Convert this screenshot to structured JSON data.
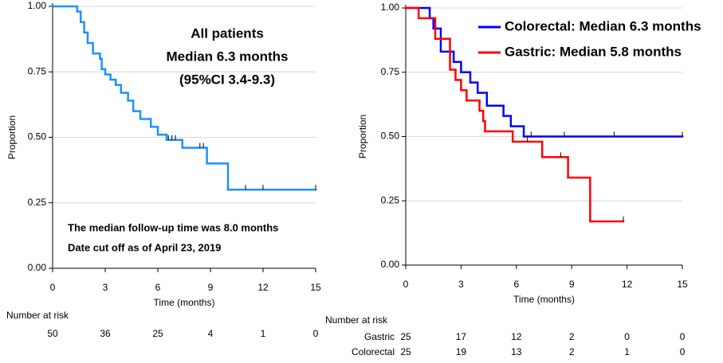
{
  "chart_data": [
    {
      "type": "step",
      "xlabel": "Time (months)",
      "ylabel": "Proportion",
      "annotations": [
        "All patients",
        "Median 6.3 months",
        "(95%CI 3.4-9.3)",
        "The median follow-up time was 8.0 months",
        "Date cut off as of April 23, 2019"
      ],
      "xlim": [
        0,
        15
      ],
      "ylim": [
        0,
        1
      ],
      "xticks": [
        0,
        3,
        6,
        9,
        12,
        15
      ],
      "yticks": [
        {
          "value": 0,
          "label": "0.00"
        },
        {
          "value": 0.25,
          "label": "0.25"
        },
        {
          "value": 0.5,
          "label": "0.50"
        },
        {
          "value": 0.75,
          "label": "0.75"
        },
        {
          "value": 1,
          "label": "1.00"
        }
      ],
      "grid": true,
      "series": [
        {
          "color": "#1e90ff",
          "x": [
            0,
            1.4,
            1.6,
            1.8,
            2.0,
            2.3,
            2.7,
            2.8,
            3.0,
            3.3,
            3.6,
            3.9,
            4.3,
            4.6,
            5.0,
            5.6,
            6.0,
            6.5,
            7.4,
            8.8,
            10.0,
            15.0
          ],
          "values": [
            1.0,
            0.98,
            0.94,
            0.9,
            0.86,
            0.82,
            0.8,
            0.76,
            0.74,
            0.72,
            0.7,
            0.67,
            0.64,
            0.6,
            0.57,
            0.54,
            0.51,
            0.49,
            0.46,
            0.4,
            0.3,
            0.3
          ],
          "censored": [
            6.6,
            6.8,
            7.0,
            8.4,
            8.6,
            11.0,
            12.0,
            15.0
          ]
        }
      ],
      "risk_table": {
        "title": "Number at risk",
        "rows": [
          {
            "values": [
              50,
              36,
              25,
              4,
              1,
              0
            ]
          }
        ]
      }
    },
    {
      "type": "step",
      "xlabel": "Time (months)",
      "ylabel": "Proportion",
      "xlim": [
        0,
        15
      ],
      "ylim": [
        0,
        1
      ],
      "xticks": [
        0,
        3,
        6,
        9,
        12,
        15
      ],
      "yticks": [
        {
          "value": 0,
          "label": "0.00"
        },
        {
          "value": 0.25,
          "label": "0.25"
        },
        {
          "value": 0.5,
          "label": "0.50"
        },
        {
          "value": 0.75,
          "label": "0.75"
        },
        {
          "value": 1,
          "label": "1.00"
        }
      ],
      "grid": true,
      "series": [
        {
          "name": "Colorectal: Median 6.3 months",
          "color": "#0000ff",
          "x": [
            0,
            1.3,
            1.5,
            1.9,
            2.6,
            3.0,
            3.5,
            3.9,
            4.4,
            5.3,
            5.7,
            6.4,
            15.0
          ],
          "values": [
            1.0,
            0.96,
            0.92,
            0.83,
            0.79,
            0.75,
            0.71,
            0.67,
            0.62,
            0.58,
            0.54,
            0.5,
            0.5
          ],
          "censored": [
            6.8,
            8.6,
            11.3,
            15.0
          ]
        },
        {
          "name": "Gastric: Median 5.8 months",
          "color": "#ff0000",
          "x": [
            0,
            0.7,
            1.6,
            2.4,
            2.7,
            3.0,
            3.3,
            4.0,
            4.2,
            4.3,
            5.8,
            7.4,
            8.8,
            10.0,
            11.8
          ],
          "values": [
            1.0,
            0.96,
            0.88,
            0.76,
            0.72,
            0.68,
            0.64,
            0.6,
            0.56,
            0.52,
            0.48,
            0.42,
            0.34,
            0.17,
            0.17
          ],
          "censored": [
            6.6,
            8.4,
            11.8
          ]
        }
      ],
      "risk_table": {
        "title": "Number at risk",
        "rows": [
          {
            "name": "Gastric",
            "values": [
              25,
              17,
              12,
              2,
              0,
              0
            ]
          },
          {
            "name": "Colorectal",
            "values": [
              25,
              19,
              13,
              2,
              1,
              0
            ]
          }
        ]
      }
    }
  ]
}
